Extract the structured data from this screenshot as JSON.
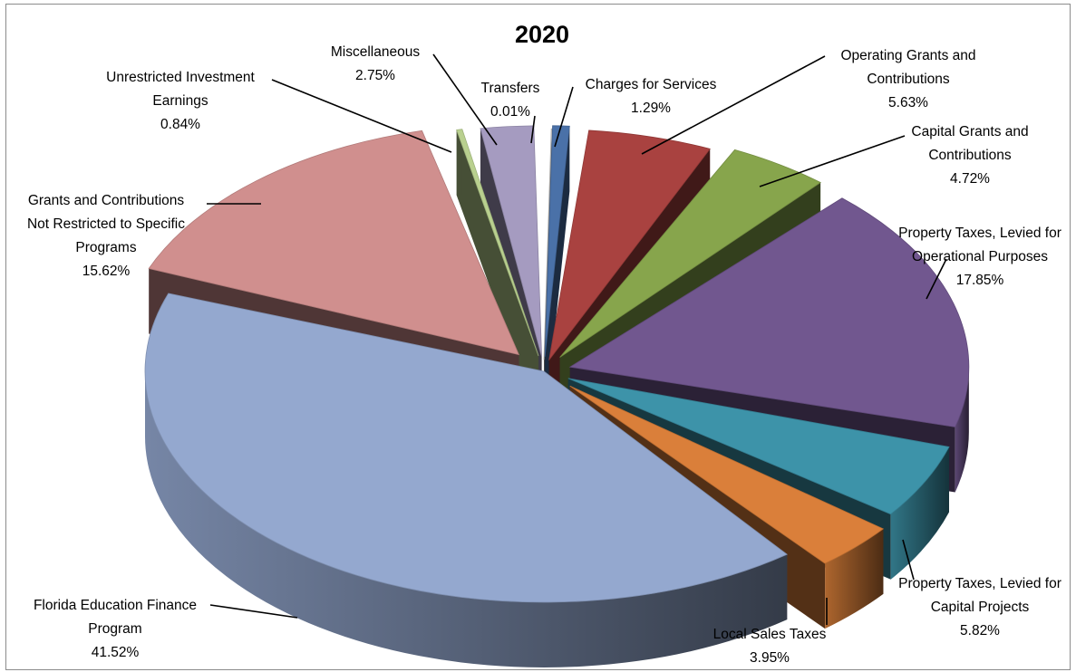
{
  "chart_data": {
    "type": "pie",
    "title": "2020",
    "slices": [
      {
        "name": [
          "Charges for Services"
        ],
        "pct": "1.29%",
        "value": 1.29,
        "color": "#4a71a8"
      },
      {
        "name": [
          "Operating Grants and",
          "Contributions"
        ],
        "pct": "5.63%",
        "value": 5.63,
        "color": "#a94240"
      },
      {
        "name": [
          "Capital Grants and",
          "Contributions"
        ],
        "pct": "4.72%",
        "value": 4.72,
        "color": "#87a54c"
      },
      {
        "name": [
          "Property Taxes, Levied for",
          "Operational Purposes"
        ],
        "pct": "17.85%",
        "value": 17.85,
        "color": "#71578f"
      },
      {
        "name": [
          "Property Taxes, Levied for",
          "Capital Projects"
        ],
        "pct": "5.82%",
        "value": 5.82,
        "color": "#3d93a9"
      },
      {
        "name": [
          "Local Sales Taxes"
        ],
        "pct": "3.95%",
        "value": 3.95,
        "color": "#da7f3a"
      },
      {
        "name": [
          "Florida Education Finance",
          "Program"
        ],
        "pct": "41.52%",
        "value": 41.52,
        "color": "#94a8cf"
      },
      {
        "name": [
          "Grants and Contributions",
          "Not Restricted to Specific",
          "Programs"
        ],
        "pct": "15.62%",
        "value": 15.62,
        "color": "#d08f8e"
      },
      {
        "name": [
          "Unrestricted Investment",
          "Earnings"
        ],
        "pct": "0.84%",
        "value": 0.84,
        "color": "#b9d08f"
      },
      {
        "name": [
          "Miscellaneous"
        ],
        "pct": "2.75%",
        "value": 2.75,
        "color": "#a59bc0"
      },
      {
        "name": [
          "Transfers"
        ],
        "pct": "0.01%",
        "value": 0.01,
        "color": "#c6c6c6"
      }
    ]
  }
}
